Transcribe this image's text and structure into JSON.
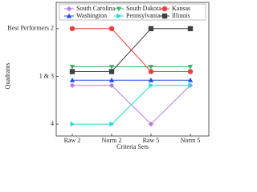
{
  "chart_data": {
    "type": "line",
    "x_label": "Criteria Sets",
    "y_label": "Quadrants",
    "categories": [
      "Raw 2",
      "Norm 2",
      "Raw 5",
      "Norm 5"
    ],
    "ylim": [
      0.75,
      3.55
    ],
    "yticks": [
      {
        "value": 1,
        "label": "4"
      },
      {
        "value": 2,
        "label": "1 & 3"
      },
      {
        "value": 3,
        "label": "Best Performers 2"
      }
    ],
    "grid": false,
    "legend": "top",
    "series": [
      {
        "name": "South Carolina",
        "color": "#b57be0",
        "marker": "diamond",
        "values": [
          1.81,
          1.81,
          1,
          1.81
        ]
      },
      {
        "name": "South Dakota",
        "color": "#3cb371",
        "marker": "triangle-down",
        "values": [
          2.2,
          2.2,
          2.2,
          2.2
        ]
      },
      {
        "name": "Kansas",
        "color": "#e8413c",
        "marker": "circle",
        "values": [
          3,
          3,
          2.1,
          2.1
        ]
      },
      {
        "name": "Washington",
        "color": "#1f4ed8",
        "marker": "triangle-up",
        "values": [
          1.92,
          1.92,
          1.92,
          1.92
        ]
      },
      {
        "name": "Pennsylvania",
        "color": "#1fdccc",
        "marker": "triangle-right",
        "values": [
          1,
          1,
          1.81,
          1.81
        ]
      },
      {
        "name": "Illinois",
        "color": "#404040",
        "marker": "square",
        "values": [
          2.1,
          2.1,
          3,
          3
        ]
      }
    ]
  }
}
